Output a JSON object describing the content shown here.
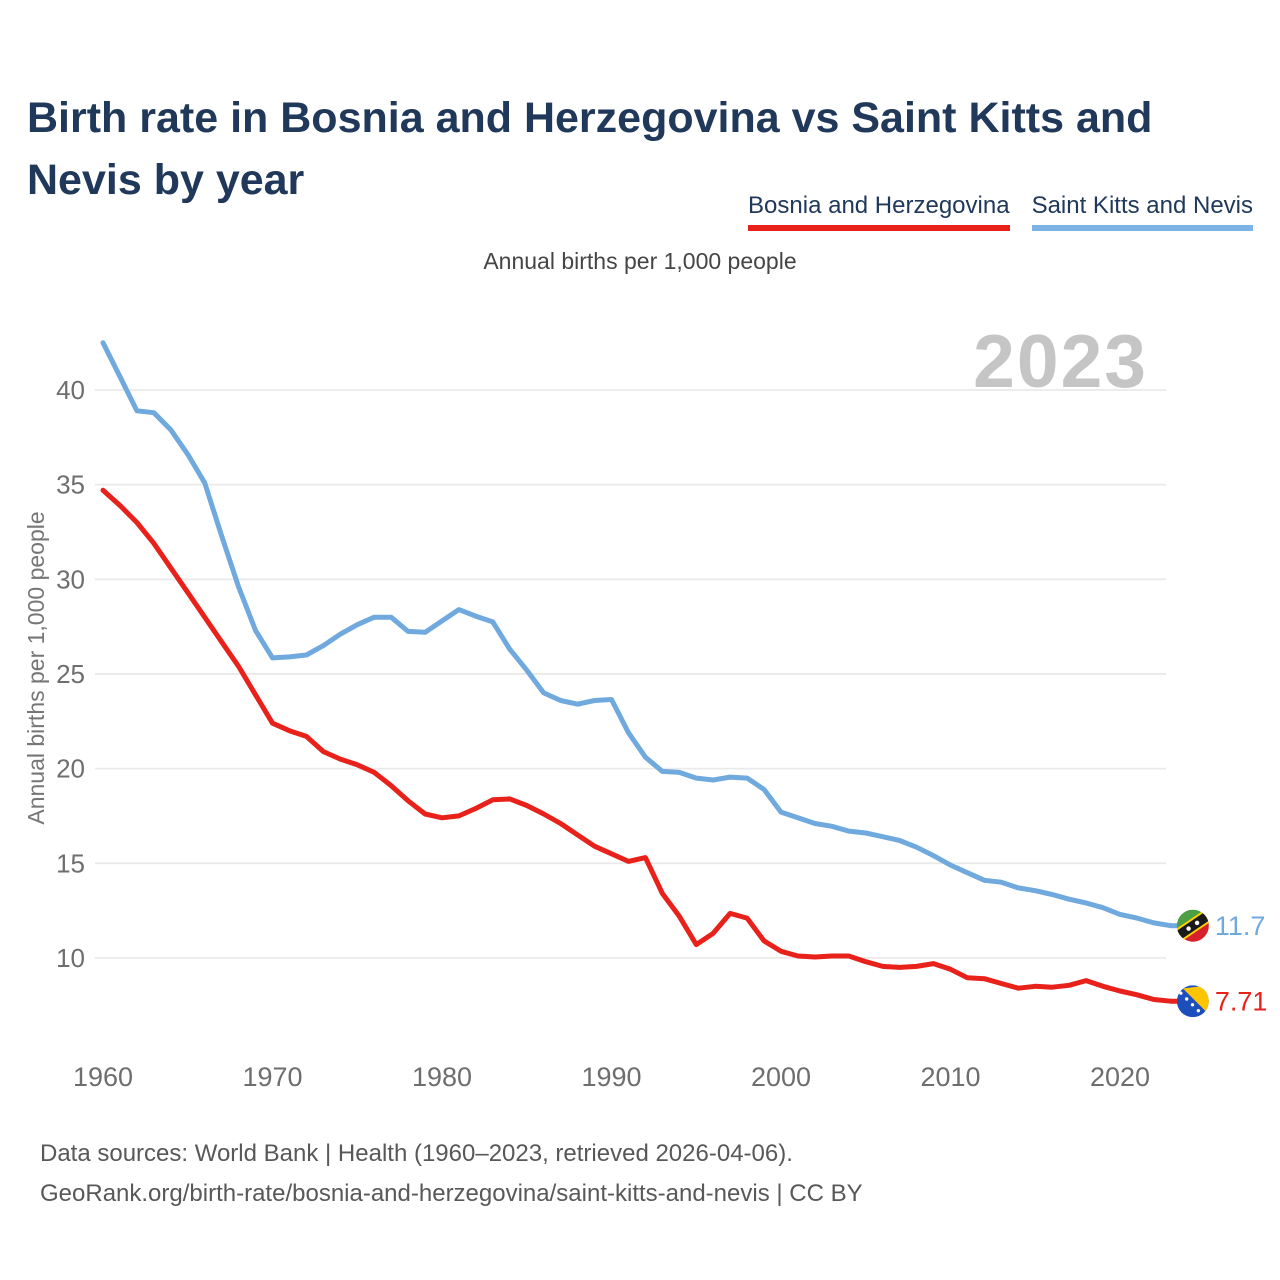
{
  "title": "Birth rate in Bosnia and Herzegovina vs Saint Kitts and Nevis by year",
  "subtitle": "Annual births per 1,000 people",
  "watermark": "2023",
  "legend": [
    {
      "label": "Bosnia and Herzegovina",
      "color": "#e8211a"
    },
    {
      "label": "Saint Kitts and Nevis",
      "color": "#7db4e6"
    }
  ],
  "y_axis": {
    "label": "Annual births per 1,000 people",
    "ticks": [
      10,
      15,
      20,
      25,
      30,
      35,
      40
    ]
  },
  "x_axis": {
    "ticks": [
      1960,
      1970,
      1980,
      1990,
      2000,
      2010,
      2020
    ]
  },
  "chart_data": {
    "type": "line",
    "title": "Birth rate in Bosnia and Herzegovina vs Saint Kitts and Nevis by year",
    "ylabel": "Annual births per 1,000 people",
    "ylim": [
      6.5,
      43.5
    ],
    "xlim": [
      1960,
      2023
    ],
    "grid": "horizontal",
    "legend_position": "top-right",
    "x": [
      1960,
      1961,
      1962,
      1963,
      1964,
      1965,
      1966,
      1967,
      1968,
      1969,
      1970,
      1971,
      1972,
      1973,
      1974,
      1975,
      1976,
      1977,
      1978,
      1979,
      1980,
      1981,
      1982,
      1983,
      1984,
      1985,
      1986,
      1987,
      1988,
      1989,
      1990,
      1991,
      1992,
      1993,
      1994,
      1995,
      1996,
      1997,
      1998,
      1999,
      2000,
      2001,
      2002,
      2003,
      2004,
      2005,
      2006,
      2007,
      2008,
      2009,
      2010,
      2011,
      2012,
      2013,
      2014,
      2015,
      2016,
      2017,
      2018,
      2019,
      2020,
      2021,
      2022,
      2023
    ],
    "series": [
      {
        "name": "Bosnia and Herzegovina",
        "color": "#e8211a",
        "end_label": "7.71",
        "flag": "bosnia-and-herzegovina",
        "values": [
          34.7,
          33.9,
          33.0,
          31.9,
          30.6,
          29.3,
          28.0,
          26.7,
          25.4,
          23.9,
          22.4,
          22.0,
          21.7,
          20.9,
          20.5,
          20.2,
          19.8,
          19.1,
          18.3,
          17.6,
          17.4,
          17.5,
          17.9,
          18.35,
          18.4,
          18.05,
          17.6,
          17.1,
          16.5,
          15.9,
          15.5,
          15.1,
          15.3,
          13.4,
          12.2,
          10.7,
          11.3,
          12.35,
          12.1,
          10.9,
          10.35,
          10.1,
          10.05,
          10.1,
          10.1,
          9.8,
          9.55,
          9.5,
          9.55,
          9.7,
          9.4,
          8.95,
          8.9,
          8.65,
          8.4,
          8.5,
          8.45,
          8.55,
          8.8,
          8.5,
          8.25,
          8.05,
          7.8,
          7.71
        ]
      },
      {
        "name": "Saint Kitts and Nevis",
        "color": "#6fa9dd",
        "end_label": "11.7",
        "flag": "saint-kitts-and-nevis",
        "values": [
          42.5,
          40.7,
          38.9,
          38.8,
          37.9,
          36.6,
          35.1,
          32.3,
          29.6,
          27.3,
          25.85,
          25.9,
          26.0,
          26.5,
          27.1,
          27.6,
          28.0,
          28.0,
          27.25,
          27.2,
          27.8,
          28.4,
          28.05,
          27.75,
          26.3,
          25.2,
          24.0,
          23.6,
          23.4,
          23.6,
          23.65,
          21.9,
          20.6,
          19.85,
          19.8,
          19.5,
          19.4,
          19.55,
          19.5,
          18.9,
          17.7,
          17.4,
          17.1,
          16.95,
          16.7,
          16.6,
          16.4,
          16.2,
          15.85,
          15.4,
          14.9,
          14.5,
          14.1,
          14.0,
          13.7,
          13.55,
          13.35,
          13.1,
          12.9,
          12.65,
          12.3,
          12.1,
          11.85,
          11.7
        ]
      }
    ]
  },
  "footer": {
    "line1": "Data sources: World Bank | Health (1960–2023, retrieved 2026-04-06).",
    "line2": "GeoRank.org/birth-rate/bosnia-and-herzegovina/saint-kitts-and-nevis | CC BY"
  }
}
